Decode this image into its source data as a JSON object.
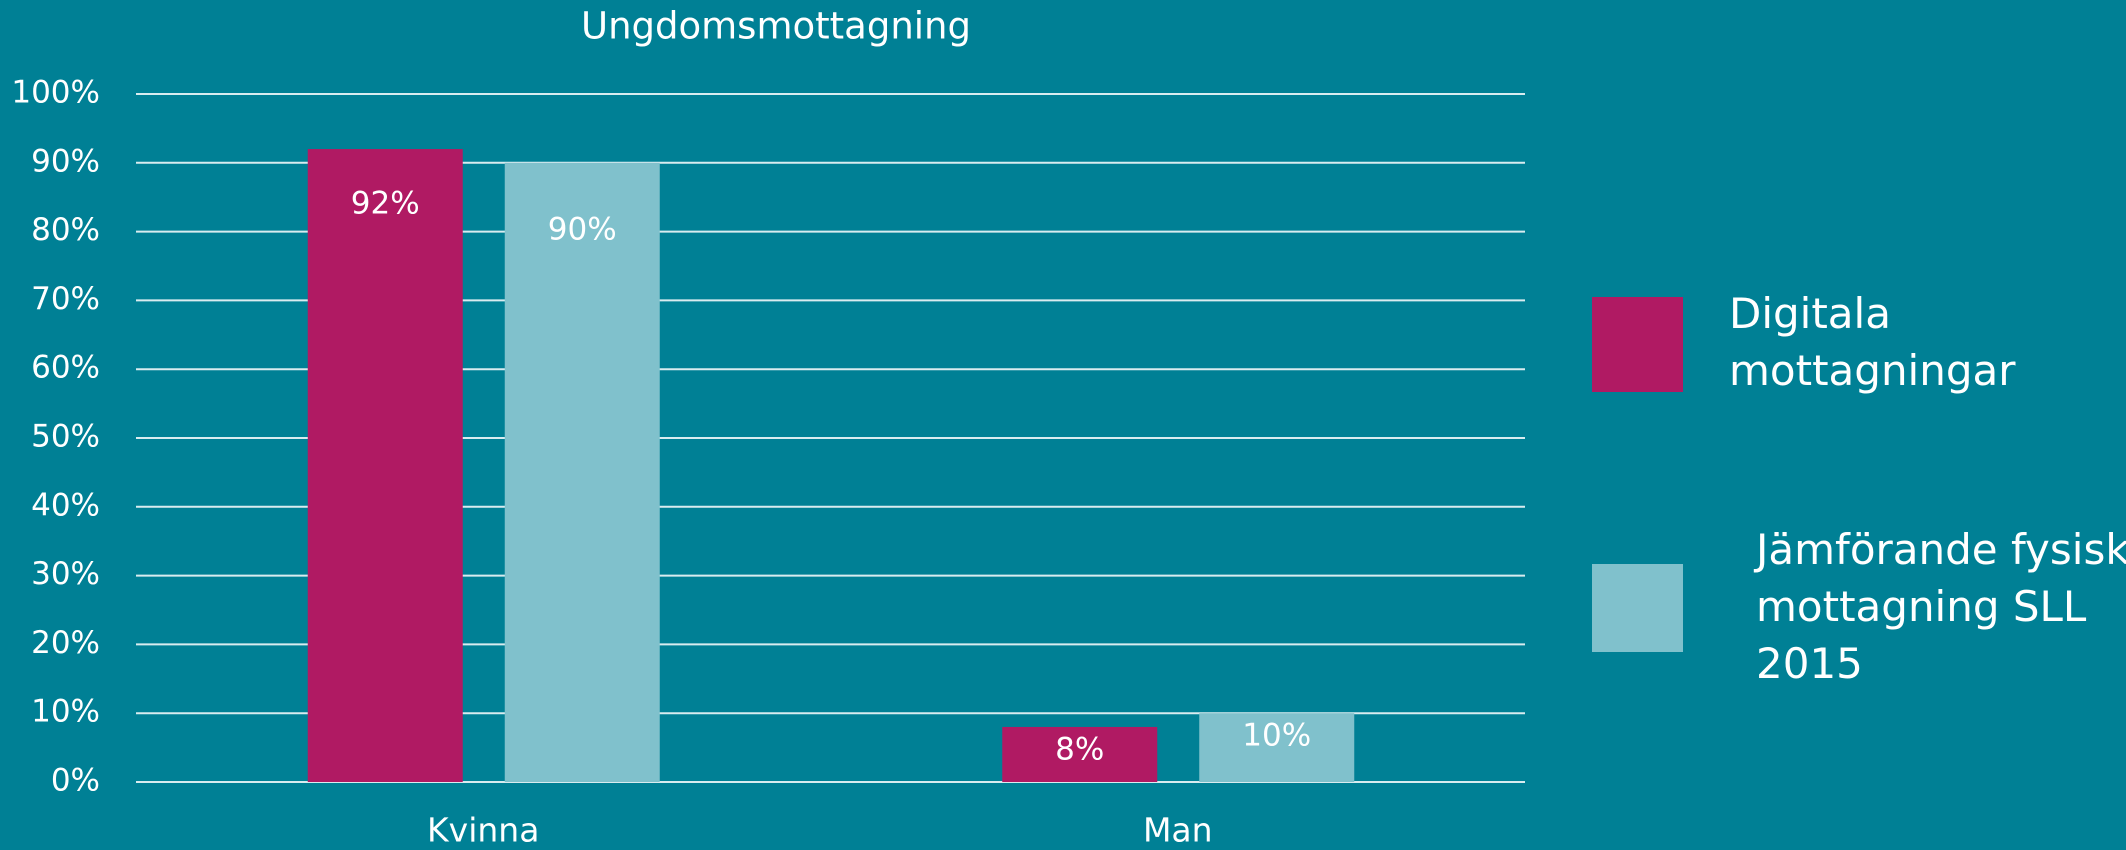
{
  "chart_data": {
    "type": "bar",
    "title": "Ungdomsmottagning",
    "categories": [
      "Kvinna",
      "Man"
    ],
    "series": [
      {
        "name": "Digitala mottagningar",
        "color": "#b01a63",
        "values": [
          92,
          8
        ],
        "value_labels": [
          "92%",
          "8%"
        ]
      },
      {
        "name": "Jämförande fysisk mottagning SLL 2015",
        "color": "#80c1cc",
        "values": [
          90,
          10
        ],
        "value_labels": [
          "90%",
          "10%"
        ]
      }
    ],
    "ylim": [
      0,
      100
    ],
    "yticks": [
      {
        "value": 0,
        "label": "0%"
      },
      {
        "value": 10,
        "label": "10%"
      },
      {
        "value": 20,
        "label": "20%"
      },
      {
        "value": 30,
        "label": "30%"
      },
      {
        "value": 40,
        "label": "40%"
      },
      {
        "value": 50,
        "label": "50%"
      },
      {
        "value": 60,
        "label": "60%"
      },
      {
        "value": 70,
        "label": "70%"
      },
      {
        "value": 80,
        "label": "80%"
      },
      {
        "value": 90,
        "label": "90%"
      },
      {
        "value": 100,
        "label": "100%"
      }
    ],
    "grid": true,
    "legend": "right"
  }
}
